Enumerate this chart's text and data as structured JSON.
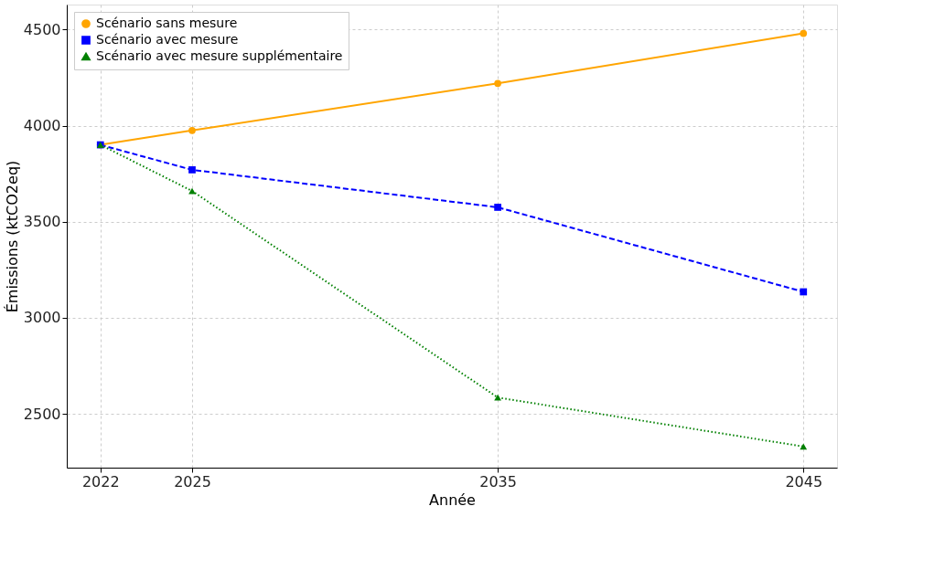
{
  "chart_data": {
    "type": "line",
    "xlabel": "Année",
    "ylabel": "Émissions (ktCO2eq)",
    "x": [
      2022,
      2025,
      2035,
      2045
    ],
    "series": [
      {
        "name": "Scénario sans mesure",
        "color": "#ffa500",
        "values": [
          3900,
          3975,
          4220,
          4480
        ],
        "marker": "circle",
        "line_style": "solid"
      },
      {
        "name": "Scénario avec mesure",
        "color": "#0000ff",
        "values": [
          3900,
          3770,
          3575,
          3135
        ],
        "marker": "square",
        "line_style": "dashed"
      },
      {
        "name": "Scénario avec mesure supplémentaire",
        "color": "#008000",
        "values": [
          3900,
          3660,
          2585,
          2330
        ],
        "marker": "triangle",
        "line_style": "dotted"
      }
    ],
    "xlim": [
      2020.9,
      2046.1
    ],
    "ylim": [
      2220,
      4630
    ],
    "xticks": [
      2022,
      2025,
      2035,
      2045
    ],
    "yticks": [
      2500,
      3000,
      3500,
      4000,
      4500
    ],
    "grid": true,
    "legend": "top left"
  }
}
